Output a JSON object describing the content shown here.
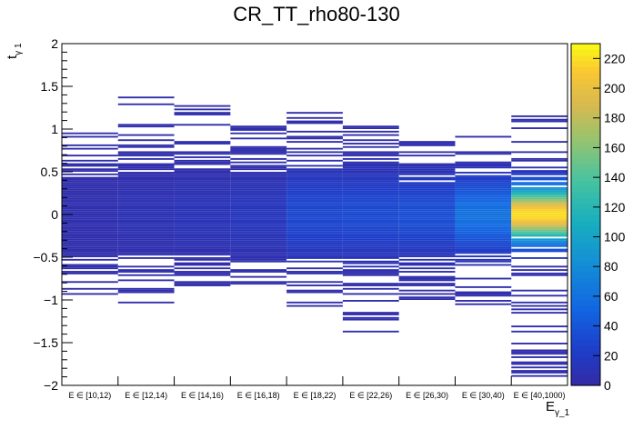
{
  "chart_data": {
    "type": "heatmap",
    "title": "CR_TT_rho80-130",
    "xlabel": "E",
    "xlabel_sub": "γ_1",
    "ylabel": "t",
    "ylabel_sub": "γ 1",
    "categories": [
      "E ∈ [10,12)",
      "E ∈ [12,14)",
      "E ∈ [14,16)",
      "E ∈ [16,18)",
      "E ∈ [18,22)",
      "E ∈ [22,26)",
      "E ∈ [26,30)",
      "E ∈ [30,40)",
      "E ∈ [40,1000)"
    ],
    "ylim": [
      -2,
      2
    ],
    "yticks": [
      "−2",
      "−1.5",
      "−1",
      "−0.5",
      "0",
      "0.5",
      "1",
      "1.5",
      "2"
    ],
    "colorbar": {
      "zlim": [
        0,
        230
      ],
      "ticks": [
        "0",
        "20",
        "40",
        "60",
        "80",
        "100",
        "120",
        "140",
        "160",
        "180",
        "200",
        "220"
      ]
    },
    "columns": [
      {
        "category": "E ∈ [10,12)",
        "peak": 6,
        "spread": 0.35,
        "range": [
          -0.95,
          0.97
        ]
      },
      {
        "category": "E ∈ [12,14)",
        "peak": 9,
        "spread": 0.38,
        "range": [
          -1.18,
          1.42
        ]
      },
      {
        "category": "E ∈ [14,16)",
        "peak": 12,
        "spread": 0.38,
        "range": [
          -0.85,
          1.33
        ]
      },
      {
        "category": "E ∈ [16,18)",
        "peak": 15,
        "spread": 0.38,
        "range": [
          -0.82,
          1.05
        ]
      },
      {
        "category": "E ∈ [18,22)",
        "peak": 30,
        "spread": 0.38,
        "range": [
          -1.1,
          1.22
        ]
      },
      {
        "category": "E ∈ [22,26)",
        "peak": 32,
        "spread": 0.36,
        "range": [
          -1.48,
          1.03
        ]
      },
      {
        "category": "E ∈ [26,30)",
        "peak": 35,
        "spread": 0.34,
        "range": [
          -1.1,
          0.87
        ]
      },
      {
        "category": "E ∈ [30,40)",
        "peak": 60,
        "spread": 0.3,
        "range": [
          -1.1,
          0.93
        ]
      },
      {
        "category": "E ∈ [40,1000)",
        "peak": 220,
        "spread": 0.22,
        "range": [
          -1.9,
          1.2
        ]
      }
    ]
  }
}
